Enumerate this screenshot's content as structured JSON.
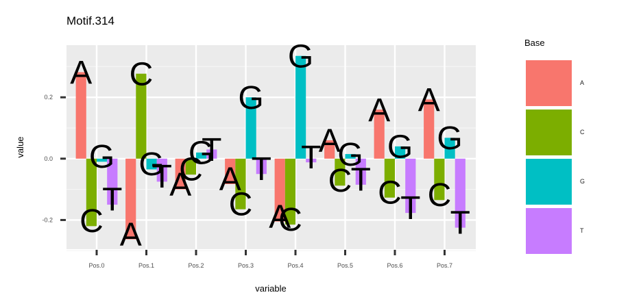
{
  "chart_data": {
    "type": "bar",
    "title": "Motif.314",
    "xlabel": "variable",
    "ylabel": "value",
    "ylim": [
      -0.295,
      0.37
    ],
    "yticks": [
      -0.2,
      0.0,
      0.2
    ],
    "ytick_labels": [
      "-0.2",
      "0.0",
      "0.2"
    ],
    "categories": [
      "Pos.0",
      "Pos.1",
      "Pos.2",
      "Pos.3",
      "Pos.4",
      "Pos.5",
      "Pos.6",
      "Pos.7"
    ],
    "legend": {
      "title": "Base",
      "placement": "right"
    },
    "grid": true,
    "series": [
      {
        "name": "A",
        "color": "#F8766D",
        "values": [
          0.282,
          -0.263,
          -0.1,
          -0.083,
          -0.205,
          0.06,
          0.16,
          0.193
        ]
      },
      {
        "name": "C",
        "color": "#7CAE00",
        "values": [
          -0.22,
          0.277,
          -0.052,
          -0.165,
          -0.215,
          -0.088,
          -0.127,
          -0.135
        ]
      },
      {
        "name": "G",
        "color": "#00BFC4",
        "values": [
          -0.01,
          -0.035,
          0.02,
          0.2,
          0.335,
          0.015,
          0.04,
          0.068
        ]
      },
      {
        "name": "T",
        "color": "#C77CFF",
        "values": [
          -0.15,
          -0.075,
          0.03,
          -0.05,
          -0.012,
          -0.085,
          -0.177,
          -0.225
        ]
      }
    ]
  }
}
